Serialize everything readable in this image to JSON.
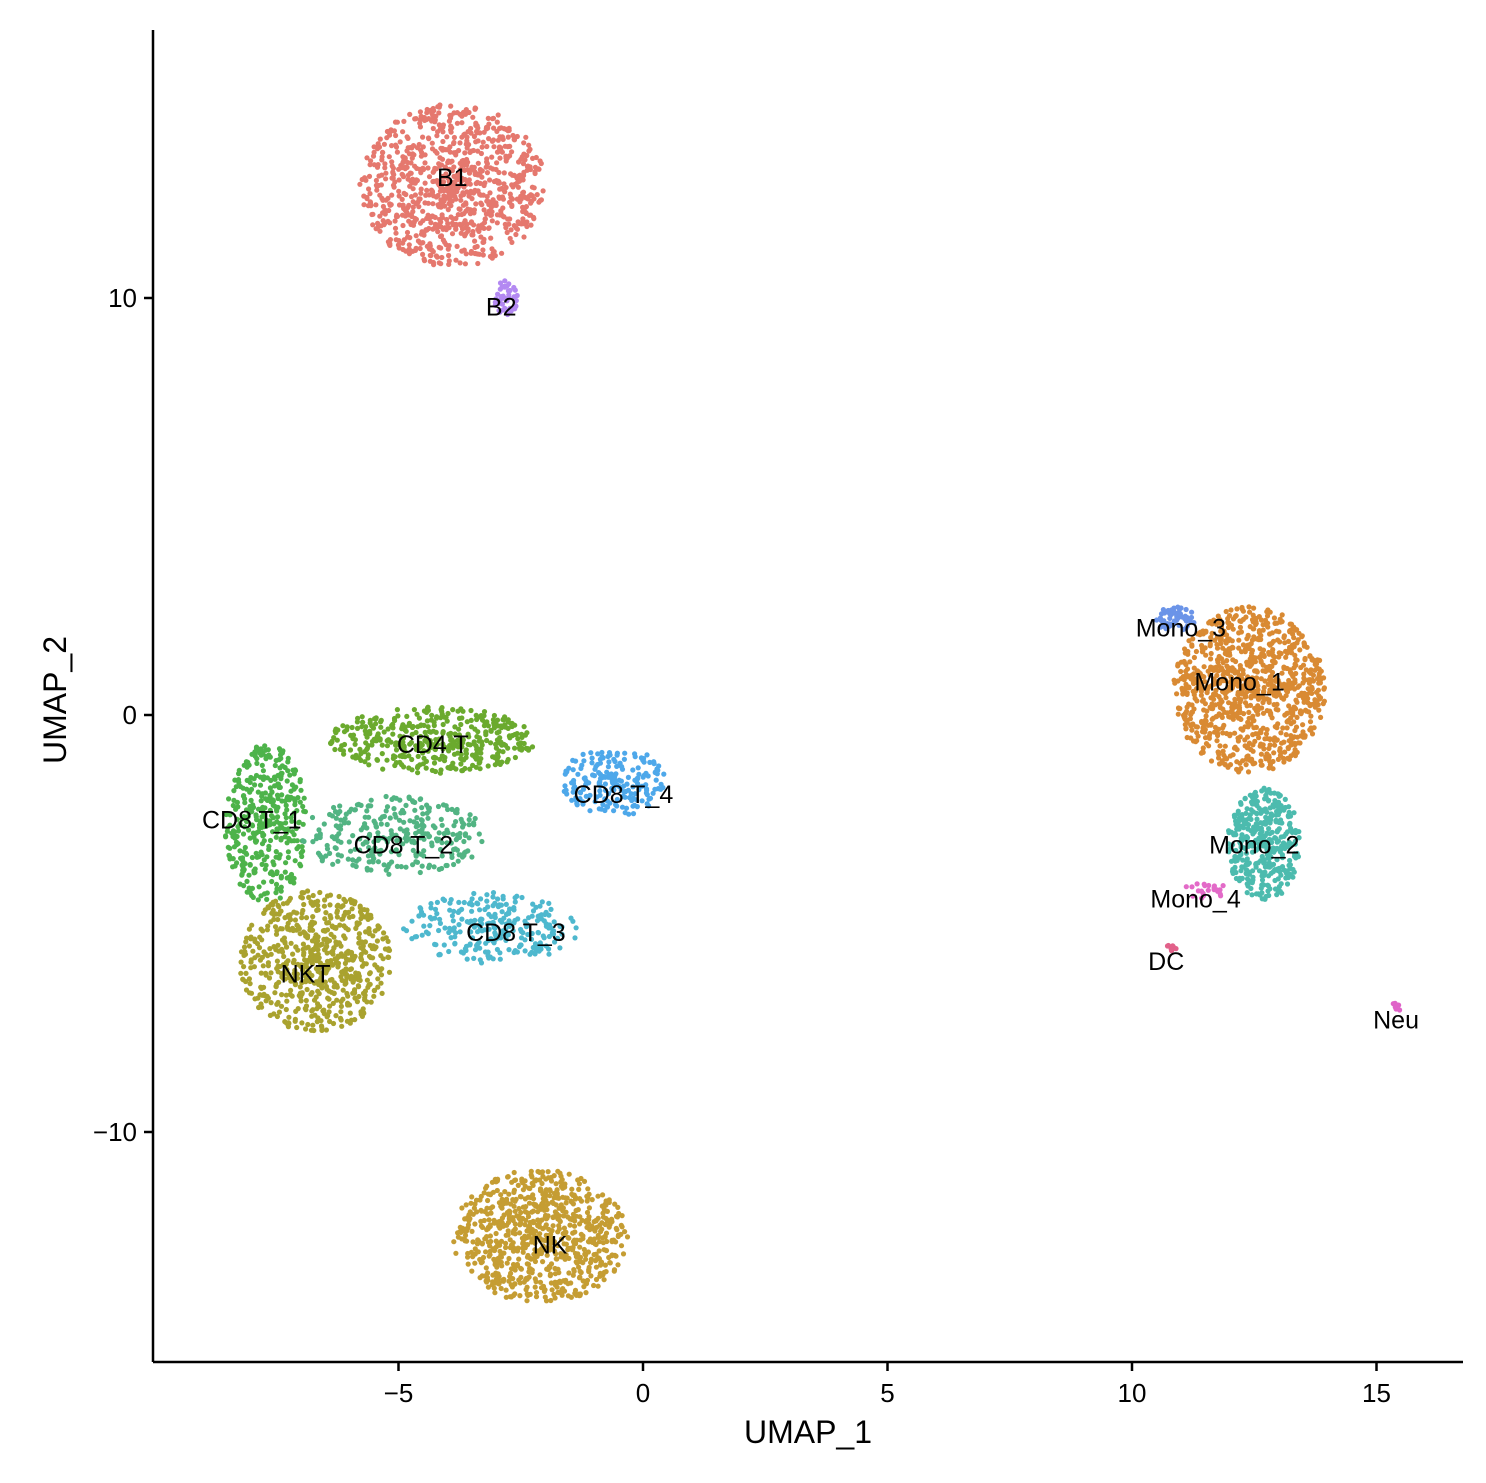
{
  "chart_data": {
    "type": "scatter",
    "title": "",
    "xlabel": "UMAP_1",
    "ylabel": "UMAP_2",
    "xlim": [
      -9.9,
      16.8
    ],
    "ylim": [
      -15.5,
      16.5
    ],
    "x_ticks": [
      -5,
      0,
      5,
      10,
      15
    ],
    "y_ticks": [
      -10,
      0,
      10
    ],
    "x_tick_labels": [
      "−5",
      "0",
      "5",
      "10",
      "15"
    ],
    "y_tick_labels": [
      "−10",
      "0",
      "10"
    ],
    "grid": false,
    "legend": "none",
    "clusters": [
      {
        "label": "B1",
        "color": "#E5786E",
        "cx": -3.9,
        "cy": 12.7,
        "rx": 1.9,
        "ry": 1.95,
        "n": 900,
        "label_x": -3.9,
        "label_y": 12.9
      },
      {
        "label": "B2",
        "color": "#B389F2",
        "cx": -2.8,
        "cy": 10.0,
        "rx": 0.25,
        "ry": 0.45,
        "n": 45,
        "label_x": -2.9,
        "label_y": 9.8
      },
      {
        "label": "CD4 T",
        "color": "#6BAA2E",
        "cx": -4.3,
        "cy": -0.6,
        "rx": 2.1,
        "ry": 0.8,
        "n": 420,
        "label_x": -4.3,
        "label_y": -0.7
      },
      {
        "label": "CD8 T_1",
        "color": "#4DB34A",
        "cx": -7.7,
        "cy": -2.6,
        "rx": 0.85,
        "ry": 1.9,
        "n": 380,
        "label_x": -8.0,
        "label_y": -2.5
      },
      {
        "label": "CD8 T_2",
        "color": "#52B483",
        "cx": -5.1,
        "cy": -2.9,
        "rx": 1.9,
        "ry": 0.95,
        "n": 300,
        "label_x": -4.9,
        "label_y": -3.1
      },
      {
        "label": "CD8 T_3",
        "color": "#4EB8CE",
        "cx": -3.1,
        "cy": -5.1,
        "rx": 1.8,
        "ry": 0.85,
        "n": 260,
        "label_x": -2.6,
        "label_y": -5.2
      },
      {
        "label": "CD8 T_4",
        "color": "#4EA8EA",
        "cx": -0.6,
        "cy": -1.6,
        "rx": 1.05,
        "ry": 0.85,
        "n": 200,
        "label_x": -0.4,
        "label_y": -1.9
      },
      {
        "label": "NKT",
        "color": "#A9A22F",
        "cx": -6.7,
        "cy": -5.9,
        "rx": 1.55,
        "ry": 1.7,
        "n": 650,
        "label_x": -6.9,
        "label_y": -6.2
      },
      {
        "label": "NK",
        "color": "#C59D33",
        "cx": -2.1,
        "cy": -12.5,
        "rx": 1.8,
        "ry": 1.6,
        "n": 800,
        "label_x": -1.9,
        "label_y": -12.7
      },
      {
        "label": "Mono_1",
        "color": "#D98A33",
        "cx": 12.4,
        "cy": 0.6,
        "rx": 1.55,
        "ry": 2.0,
        "n": 950,
        "label_x": 12.2,
        "label_y": 0.8
      },
      {
        "label": "Mono_2",
        "color": "#4CBBAE",
        "cx": 12.7,
        "cy": -3.1,
        "rx": 0.75,
        "ry": 1.35,
        "n": 400,
        "label_x": 12.5,
        "label_y": -3.1
      },
      {
        "label": "Mono_3",
        "color": "#6B94E8",
        "cx": 10.9,
        "cy": 2.3,
        "rx": 0.45,
        "ry": 0.3,
        "n": 55,
        "label_x": 11.0,
        "label_y": 2.1
      },
      {
        "label": "Mono_4",
        "color": "#E36AC8",
        "cx": 11.5,
        "cy": -4.2,
        "rx": 0.45,
        "ry": 0.2,
        "n": 22,
        "label_x": 11.3,
        "label_y": -4.4
      },
      {
        "label": "DC",
        "color": "#E2618A",
        "cx": 10.8,
        "cy": -5.6,
        "rx": 0.1,
        "ry": 0.12,
        "n": 8,
        "label_x": 10.7,
        "label_y": -5.9
      },
      {
        "label": "Neu",
        "color": "#DF63C8",
        "cx": 15.4,
        "cy": -7.0,
        "rx": 0.12,
        "ry": 0.12,
        "n": 8,
        "label_x": 15.4,
        "label_y": -7.3
      }
    ]
  }
}
